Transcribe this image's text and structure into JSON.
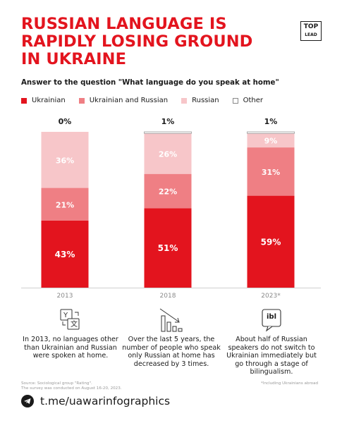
{
  "header": {
    "title_lines": [
      "RUSSIAN LANGUAGE IS",
      "RAPIDLY LOSING GROUND",
      "IN UKRAINE"
    ],
    "logo_top": "TOP",
    "logo_bottom": "LEAD"
  },
  "subtitle": "Answer to the question \"What language do you speak at home\"",
  "colors": {
    "ukrainian": "#e3141e",
    "ukrainian_and_russian": "#ef7f84",
    "russian": "#f7c6c9",
    "other": "#ffffff"
  },
  "chart_data": {
    "type": "bar",
    "stacked": true,
    "categories": [
      "2013",
      "2018",
      "2023*"
    ],
    "series": [
      {
        "name": "Ukrainian",
        "values": [
          43,
          51,
          59
        ]
      },
      {
        "name": "Ukrainian and Russian",
        "values": [
          21,
          22,
          31
        ]
      },
      {
        "name": "Russian",
        "values": [
          36,
          26,
          9
        ]
      },
      {
        "name": "Other",
        "values": [
          0,
          1,
          1
        ]
      }
    ],
    "segment_labels": [
      [
        "43%",
        "51%",
        "59%"
      ],
      [
        "21%",
        "22%",
        "31%"
      ],
      [
        "36%",
        "26%",
        "9%"
      ],
      [
        "0%",
        "1%",
        "1%"
      ]
    ],
    "ylim": [
      0,
      100
    ],
    "legend_position": "top-left",
    "grid": false
  },
  "features": [
    {
      "icon": "translate-icon",
      "text": "In 2013, no languages other than Ukrainian and Russian were spoken at home."
    },
    {
      "icon": "declining-bars-icon",
      "text": "Over the last 5 years, the number of people who speak only Russian at home has decreased by 3 times."
    },
    {
      "icon": "bilingual-icon",
      "icon_text": "ibl",
      "text": "About half of Russian speakers do not switch to Ukrainian immediately but go through a stage of bilingualism."
    }
  ],
  "source": {
    "line1": "Source: Sociological group \"Rating\".",
    "line2": "The survey was conducted on August 16-20, 2023."
  },
  "note": "*Including Ukrainians abroad",
  "footer": {
    "link": "t.me/uawarinfographics"
  }
}
